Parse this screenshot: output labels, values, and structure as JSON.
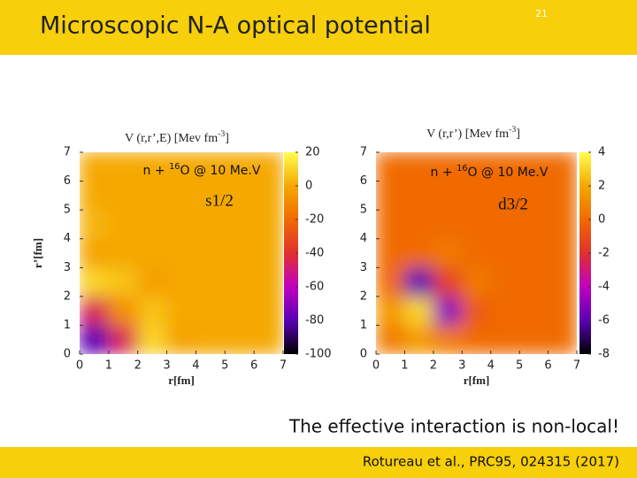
{
  "slide_number": "21",
  "header": {
    "title": "Microscopic N-A optical potential"
  },
  "statement": "The effective interaction is non-local!",
  "footer": {
    "citation": "Rotureau et al., PRC95, 024315 (2017)"
  },
  "chart_data": [
    {
      "type": "heatmap",
      "title": [
        "V (r,r’,E) [Mev fm",
        "-3",
        "]"
      ],
      "annotation": [
        "n + ",
        "16",
        "O @ 10 Me.V"
      ],
      "label": "s1/2",
      "xlabel": "r[fm]",
      "ylabel": "r’[fm]",
      "xlim": [
        0,
        7
      ],
      "ylim": [
        0,
        7
      ],
      "xticks": [
        0,
        1,
        2,
        3,
        4,
        5,
        6,
        7
      ],
      "yticks": [
        0,
        1,
        2,
        3,
        4,
        5,
        6,
        7
      ],
      "zlim": [
        -100,
        20
      ],
      "zticks": [
        20,
        0,
        -20,
        -40,
        -60,
        -80,
        -100
      ],
      "colormap": [
        "#000000",
        "#5a00b4",
        "#c000c0",
        "#e03030",
        "#f06a00",
        "#f5a800",
        "#ffff50"
      ],
      "z": [
        [
          -80,
          -45,
          10,
          -2,
          0,
          0,
          0
        ],
        [
          -45,
          -8,
          6,
          0,
          0,
          0,
          0
        ],
        [
          10,
          6,
          -3,
          0,
          0,
          0,
          0
        ],
        [
          -2,
          0,
          0,
          0,
          0,
          0,
          0
        ],
        [
          3,
          0,
          0,
          0,
          0,
          0,
          0
        ],
        [
          0,
          0,
          0,
          0,
          0,
          0,
          0
        ],
        [
          0,
          0,
          0,
          0,
          0,
          0,
          0
        ]
      ]
    },
    {
      "type": "heatmap",
      "title": [
        "V (r,r’) [Mev fm",
        "-3",
        "]"
      ],
      "annotation": [
        "n + ",
        "16",
        "O @ 10 Me.V"
      ],
      "label": "d3/2",
      "xlabel": "r[fm]",
      "xlim": [
        0,
        7
      ],
      "ylim": [
        0,
        7
      ],
      "xticks": [
        0,
        1,
        2,
        3,
        4,
        5,
        6,
        7
      ],
      "yticks": [
        0,
        1,
        2,
        3,
        4,
        5,
        6,
        7
      ],
      "zlim": [
        -8,
        4
      ],
      "zticks": [
        4,
        2,
        0,
        -2,
        -4,
        -6,
        -8
      ],
      "colormap": [
        "#000000",
        "#5a00b4",
        "#c000c0",
        "#e03030",
        "#f06a00",
        "#f5a800",
        "#ffff50"
      ],
      "z": [
        [
          0.5,
          1.5,
          0.5,
          0,
          0,
          0,
          0
        ],
        [
          1.5,
          3,
          -5,
          -0.5,
          0,
          0,
          0
        ],
        [
          0,
          -6,
          -1.5,
          0.5,
          0,
          0,
          0
        ],
        [
          0,
          0,
          0.5,
          0,
          0,
          0,
          0
        ],
        [
          0,
          0,
          0,
          0,
          0,
          0,
          0
        ],
        [
          0,
          0,
          0,
          0,
          0,
          0,
          0
        ],
        [
          0,
          0,
          0,
          0,
          0,
          0,
          0
        ]
      ]
    }
  ]
}
